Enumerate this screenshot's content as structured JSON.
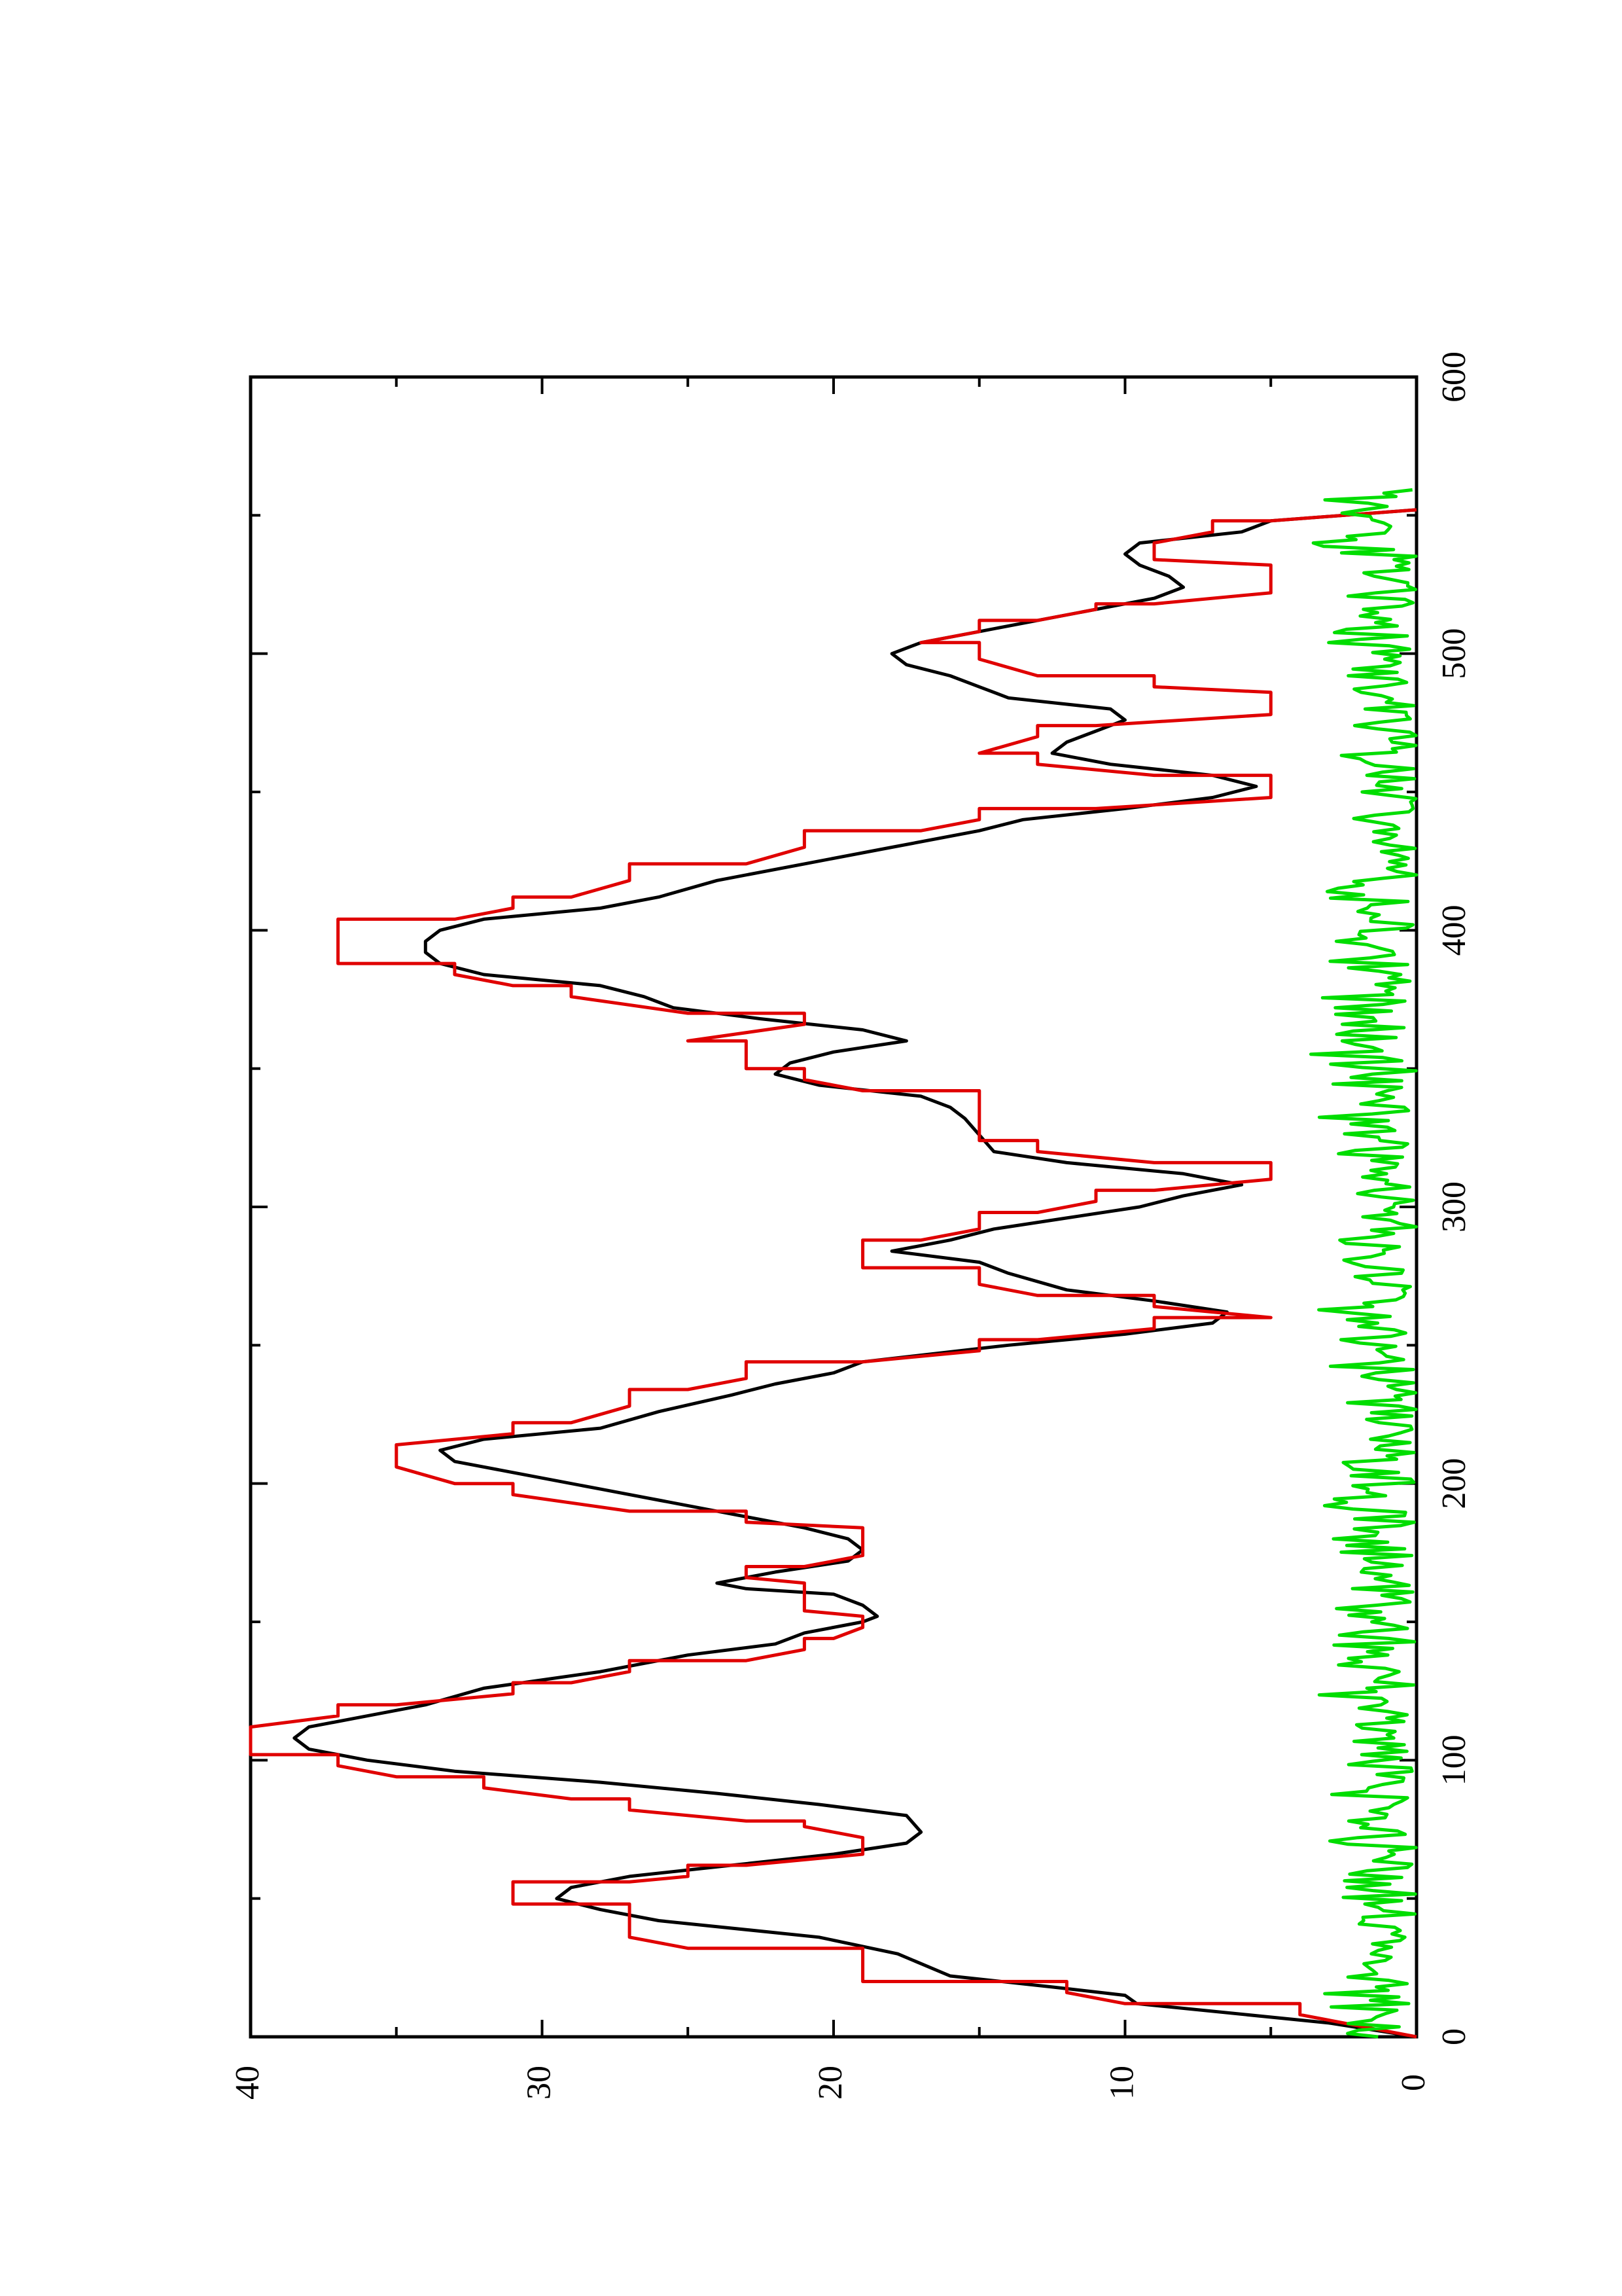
{
  "chart_data": {
    "type": "line",
    "title": "",
    "xlabel": "",
    "ylabel": "",
    "orientation": "rotated-90-ccw",
    "xlim": [
      0,
      600
    ],
    "ylim": [
      0,
      40
    ],
    "x_ticks": [
      0,
      100,
      200,
      300,
      400,
      500,
      600
    ],
    "y_ticks": [
      0,
      10,
      20,
      30,
      40
    ],
    "grid": false,
    "legend": "none",
    "series": [
      {
        "color": "#000000",
        "style": "smooth",
        "points": [
          [
            0,
            0
          ],
          [
            5,
            3
          ],
          [
            12,
            9.6
          ],
          [
            15,
            10
          ],
          [
            18,
            12.5
          ],
          [
            22,
            16
          ],
          [
            30,
            17.8
          ],
          [
            36,
            20.5
          ],
          [
            42,
            26
          ],
          [
            46,
            28
          ],
          [
            50,
            29.5
          ],
          [
            54,
            29
          ],
          [
            58,
            27
          ],
          [
            62,
            23.5
          ],
          [
            66,
            20
          ],
          [
            70,
            17.5
          ],
          [
            74,
            17
          ],
          [
            80,
            17.5
          ],
          [
            84,
            20.5
          ],
          [
            88,
            24
          ],
          [
            92,
            28
          ],
          [
            96,
            33
          ],
          [
            100,
            36
          ],
          [
            104,
            38
          ],
          [
            108,
            38.5
          ],
          [
            112,
            38
          ],
          [
            116,
            36
          ],
          [
            120,
            34
          ],
          [
            126,
            32
          ],
          [
            132,
            28
          ],
          [
            138,
            25
          ],
          [
            142,
            22
          ],
          [
            146,
            21
          ],
          [
            150,
            19
          ],
          [
            152,
            18.5
          ],
          [
            156,
            19
          ],
          [
            160,
            20
          ],
          [
            162,
            23
          ],
          [
            164,
            24
          ],
          [
            168,
            22
          ],
          [
            172,
            19.5
          ],
          [
            176,
            19
          ],
          [
            180,
            19.5
          ],
          [
            184,
            21
          ],
          [
            188,
            23
          ],
          [
            194,
            26
          ],
          [
            198,
            28
          ],
          [
            204,
            31
          ],
          [
            208,
            33
          ],
          [
            212,
            33.5
          ],
          [
            216,
            32
          ],
          [
            220,
            28
          ],
          [
            226,
            26
          ],
          [
            232,
            23.5
          ],
          [
            236,
            22
          ],
          [
            240,
            20
          ],
          [
            244,
            19
          ],
          [
            250,
            14
          ],
          [
            254,
            10
          ],
          [
            258,
            7
          ],
          [
            262,
            6.5
          ],
          [
            266,
            9
          ],
          [
            270,
            12
          ],
          [
            276,
            14
          ],
          [
            280,
            15
          ],
          [
            284,
            18
          ],
          [
            288,
            16
          ],
          [
            292,
            14.5
          ],
          [
            296,
            12
          ],
          [
            300,
            9.5
          ],
          [
            304,
            8
          ],
          [
            308,
            6
          ],
          [
            312,
            8
          ],
          [
            316,
            12
          ],
          [
            320,
            14.5
          ],
          [
            326,
            15
          ],
          [
            332,
            15.5
          ],
          [
            336,
            16
          ],
          [
            340,
            17
          ],
          [
            344,
            20.5
          ],
          [
            348,
            22
          ],
          [
            352,
            21.5
          ],
          [
            356,
            20
          ],
          [
            360,
            17.5
          ],
          [
            364,
            19
          ],
          [
            368,
            22.5
          ],
          [
            372,
            25.5
          ],
          [
            376,
            26.5
          ],
          [
            380,
            28
          ],
          [
            384,
            32
          ],
          [
            388,
            33.5
          ],
          [
            392,
            34
          ],
          [
            396,
            34
          ],
          [
            400,
            33.5
          ],
          [
            404,
            32
          ],
          [
            408,
            28
          ],
          [
            412,
            26
          ],
          [
            418,
            24
          ],
          [
            424,
            21
          ],
          [
            430,
            18
          ],
          [
            436,
            15
          ],
          [
            440,
            13.5
          ],
          [
            444,
            10
          ],
          [
            448,
            7
          ],
          [
            452,
            5.5
          ],
          [
            456,
            7
          ],
          [
            460,
            10.5
          ],
          [
            464,
            12.5
          ],
          [
            468,
            12
          ],
          [
            472,
            11
          ],
          [
            476,
            10
          ],
          [
            480,
            10.5
          ],
          [
            484,
            14
          ],
          [
            488,
            15
          ],
          [
            492,
            16
          ],
          [
            496,
            17.5
          ],
          [
            500,
            18
          ],
          [
            504,
            17
          ],
          [
            508,
            15
          ],
          [
            512,
            13
          ],
          [
            516,
            11
          ],
          [
            520,
            9
          ],
          [
            524,
            8
          ],
          [
            528,
            8.5
          ],
          [
            532,
            9.5
          ],
          [
            536,
            10
          ],
          [
            540,
            9.5
          ],
          [
            544,
            6
          ],
          [
            548,
            5
          ],
          [
            552,
            0
          ]
        ]
      },
      {
        "color": "#e00000",
        "style": "step",
        "points": [
          [
            0,
            0
          ],
          [
            8,
            4
          ],
          [
            12,
            10
          ],
          [
            16,
            12
          ],
          [
            20,
            19
          ],
          [
            28,
            19
          ],
          [
            32,
            25
          ],
          [
            36,
            27
          ],
          [
            48,
            31
          ],
          [
            52,
            31
          ],
          [
            56,
            27
          ],
          [
            58,
            25
          ],
          [
            62,
            23
          ],
          [
            66,
            19
          ],
          [
            72,
            19
          ],
          [
            76,
            21
          ],
          [
            78,
            23
          ],
          [
            82,
            27
          ],
          [
            86,
            29
          ],
          [
            90,
            32
          ],
          [
            94,
            35
          ],
          [
            98,
            37
          ],
          [
            102,
            40
          ],
          [
            110,
            40
          ],
          [
            112,
            40
          ],
          [
            116,
            37
          ],
          [
            120,
            35
          ],
          [
            124,
            31
          ],
          [
            128,
            29
          ],
          [
            132,
            27
          ],
          [
            136,
            23
          ],
          [
            140,
            21
          ],
          [
            144,
            20
          ],
          [
            148,
            19
          ],
          [
            152,
            19
          ],
          [
            154,
            21
          ],
          [
            164,
            21
          ],
          [
            166,
            23
          ],
          [
            170,
            21
          ],
          [
            174,
            19
          ],
          [
            184,
            19
          ],
          [
            186,
            23
          ],
          [
            190,
            27
          ],
          [
            196,
            31
          ],
          [
            200,
            33
          ],
          [
            206,
            35
          ],
          [
            214,
            35
          ],
          [
            218,
            31
          ],
          [
            222,
            29
          ],
          [
            228,
            27
          ],
          [
            234,
            25
          ],
          [
            238,
            23
          ],
          [
            244,
            19
          ],
          [
            248,
            15
          ],
          [
            252,
            13
          ],
          [
            256,
            9
          ],
          [
            260,
            5
          ],
          [
            264,
            9
          ],
          [
            268,
            13
          ],
          [
            272,
            15
          ],
          [
            278,
            19
          ],
          [
            284,
            19
          ],
          [
            288,
            17
          ],
          [
            292,
            15
          ],
          [
            298,
            13
          ],
          [
            302,
            11
          ],
          [
            306,
            9
          ],
          [
            310,
            5
          ],
          [
            316,
            9
          ],
          [
            320,
            13
          ],
          [
            324,
            15
          ],
          [
            340,
            15
          ],
          [
            342,
            19
          ],
          [
            346,
            21
          ],
          [
            350,
            23
          ],
          [
            356,
            23
          ],
          [
            360,
            25
          ],
          [
            366,
            21
          ],
          [
            370,
            25
          ],
          [
            376,
            29
          ],
          [
            380,
            31
          ],
          [
            384,
            33
          ],
          [
            388,
            37
          ],
          [
            402,
            37
          ],
          [
            404,
            33
          ],
          [
            408,
            31
          ],
          [
            412,
            29
          ],
          [
            418,
            27
          ],
          [
            424,
            23
          ],
          [
            430,
            21
          ],
          [
            436,
            17
          ],
          [
            440,
            15
          ],
          [
            444,
            11
          ],
          [
            448,
            5
          ],
          [
            456,
            9
          ],
          [
            460,
            13
          ],
          [
            464,
            15
          ],
          [
            470,
            13
          ],
          [
            474,
            11
          ],
          [
            478,
            5
          ],
          [
            486,
            5
          ],
          [
            488,
            9
          ],
          [
            492,
            13
          ],
          [
            498,
            15
          ],
          [
            504,
            17
          ],
          [
            508,
            15
          ],
          [
            512,
            13
          ],
          [
            516,
            11
          ],
          [
            518,
            9
          ],
          [
            522,
            5
          ],
          [
            532,
            5
          ],
          [
            534,
            9
          ],
          [
            540,
            9
          ],
          [
            544,
            7
          ],
          [
            548,
            5
          ],
          [
            552,
            0
          ]
        ]
      },
      {
        "color": "#00dd00",
        "style": "noise",
        "amplitude": 2.5,
        "x_range": [
          0,
          560
        ]
      }
    ]
  }
}
